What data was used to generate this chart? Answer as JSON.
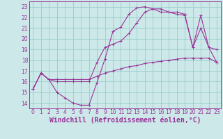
{
  "background_color": "#cce8e8",
  "grid_color": "#99cccc",
  "line_color": "#993399",
  "xlabel": "Windchill (Refroidissement éolien,°C)",
  "xlim": [
    -0.5,
    23.5
  ],
  "ylim": [
    13.5,
    23.5
  ],
  "yticks": [
    14,
    15,
    16,
    17,
    18,
    19,
    20,
    21,
    22,
    23
  ],
  "xticks": [
    0,
    1,
    2,
    3,
    4,
    5,
    6,
    7,
    8,
    9,
    10,
    11,
    12,
    13,
    14,
    15,
    16,
    17,
    18,
    19,
    20,
    21,
    22,
    23
  ],
  "line1_x": [
    0,
    1,
    2,
    3,
    4,
    5,
    6,
    7,
    8,
    9,
    10,
    11,
    12,
    13,
    14,
    15,
    16,
    17,
    18,
    19,
    20,
    21,
    22,
    23
  ],
  "line1_y": [
    15.3,
    16.8,
    16.2,
    15.0,
    14.5,
    14.0,
    13.8,
    13.8,
    15.9,
    18.1,
    20.7,
    21.1,
    22.3,
    22.9,
    23.0,
    22.8,
    22.5,
    22.5,
    22.3,
    22.2,
    19.2,
    21.0,
    19.2,
    19.0
  ],
  "line2_x": [
    0,
    1,
    2,
    3,
    4,
    5,
    6,
    7,
    8,
    9,
    10,
    11,
    12,
    13,
    14,
    15,
    16,
    17,
    18,
    19,
    20,
    21,
    22,
    23
  ],
  "line2_y": [
    15.3,
    16.8,
    16.2,
    16.0,
    16.0,
    16.0,
    16.0,
    16.0,
    17.8,
    19.2,
    19.5,
    19.8,
    20.5,
    21.5,
    22.5,
    22.8,
    22.8,
    22.5,
    22.5,
    22.3,
    19.2,
    22.2,
    19.2,
    17.8
  ],
  "line3_x": [
    0,
    1,
    2,
    3,
    4,
    5,
    6,
    7,
    8,
    9,
    10,
    11,
    12,
    13,
    14,
    15,
    16,
    17,
    18,
    19,
    20,
    21,
    22,
    23
  ],
  "line3_y": [
    15.3,
    16.8,
    16.2,
    16.2,
    16.2,
    16.2,
    16.2,
    16.2,
    16.5,
    16.8,
    17.0,
    17.2,
    17.4,
    17.5,
    17.7,
    17.8,
    17.9,
    18.0,
    18.1,
    18.2,
    18.2,
    18.2,
    18.2,
    17.8
  ],
  "tick_fontsize": 5.5,
  "xlabel_fontsize": 7.0
}
